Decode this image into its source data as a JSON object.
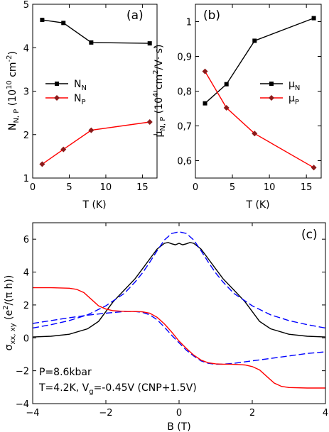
{
  "chart_data": [
    {
      "type": "line",
      "panel": "(a)",
      "xlabel": "T (K)",
      "ylabel": "N",
      "ylabel_sub": "N, P",
      "ylabel_unit": " (10",
      "ylabel_sup": "10",
      "ylabel_unit2": " cm",
      "ylabel_sup2": "-2",
      "ylabel_end": ")",
      "xlim": [
        0,
        17
      ],
      "ylim": [
        1,
        5
      ],
      "xticks": [
        0,
        5,
        10,
        15
      ],
      "yticks": [
        1,
        2,
        3,
        4,
        5
      ],
      "grid": false,
      "legend": "center-left",
      "series": [
        {
          "name": "N",
          "name_sub": "N",
          "color": "#000000",
          "marker": "square",
          "x": [
            1.3,
            4.2,
            8,
            16
          ],
          "y": [
            4.64,
            4.57,
            4.12,
            4.1
          ]
        },
        {
          "name": "N",
          "name_sub": "P",
          "color": "#ff0000",
          "marker": "diamond",
          "x": [
            1.3,
            4.2,
            8,
            16
          ],
          "y": [
            1.32,
            1.66,
            2.1,
            2.29
          ]
        }
      ]
    },
    {
      "type": "line",
      "panel": "(b)",
      "xlabel": "T (K)",
      "ylabel": "μ",
      "ylabel_sub": "N, P",
      "ylabel_unit": " (10",
      "ylabel_sup": "4",
      "ylabel_unit2": " cm",
      "ylabel_sup2": "2",
      "ylabel_end": "/V· s)",
      "xlim": [
        0,
        17
      ],
      "ylim": [
        0.55,
        1.05
      ],
      "xticks": [
        0,
        5,
        10,
        15
      ],
      "yticks": [
        0.6,
        0.7,
        0.8,
        0.9,
        1.0
      ],
      "ytick_labels": [
        "0,6",
        "0,7",
        "0,8",
        "0,9",
        "1"
      ],
      "grid": false,
      "legend": "upper-right",
      "series": [
        {
          "name": "μ",
          "name_sub": "N",
          "color": "#000000",
          "marker": "square",
          "x": [
            1.3,
            4.2,
            8,
            16
          ],
          "y": [
            0.765,
            0.82,
            0.945,
            1.01
          ]
        },
        {
          "name": "μ",
          "name_sub": "P",
          "color": "#ff0000",
          "marker": "diamond",
          "x": [
            1.3,
            4.2,
            8,
            16
          ],
          "y": [
            0.857,
            0.752,
            0.678,
            0.58
          ]
        }
      ]
    },
    {
      "type": "line",
      "panel": "(c)",
      "xlabel": "B (T)",
      "ylabel": "σ",
      "ylabel_sub": "xx, xy",
      "ylabel_unit": " (e",
      "ylabel_sup": "2",
      "ylabel_end": "/(π h))",
      "xlim": [
        -4,
        4
      ],
      "ylim": [
        -4,
        7
      ],
      "xticks": [
        -4,
        -2,
        0,
        2,
        4
      ],
      "yticks": [
        -4,
        -2,
        0,
        2,
        4,
        6
      ],
      "grid": false,
      "annotations": [
        "P=8.6kbar",
        "T=4.2K, V",
        "g",
        "=-0.45V (CNP+1.5V)"
      ],
      "series": [
        {
          "color": "#000000",
          "style": "solid",
          "x": [
            -4,
            -3.5,
            -3,
            -2.5,
            -2.2,
            -2,
            -1.8,
            -1.5,
            -1.2,
            -1,
            -0.8,
            -0.6,
            -0.4,
            -0.3,
            -0.2,
            -0.1,
            0,
            0.1,
            0.2,
            0.3,
            0.4,
            0.6,
            0.8,
            1,
            1.2,
            1.5,
            1.8,
            2,
            2.2,
            2.5,
            3,
            3.5,
            4
          ],
          "y": [
            0.05,
            0.1,
            0.22,
            0.55,
            1.0,
            1.6,
            2.2,
            2.9,
            3.6,
            4.2,
            4.8,
            5.4,
            5.75,
            5.8,
            5.72,
            5.66,
            5.75,
            5.66,
            5.72,
            5.8,
            5.75,
            5.4,
            4.8,
            4.2,
            3.6,
            2.9,
            2.2,
            1.6,
            1.0,
            0.55,
            0.22,
            0.1,
            0.05
          ]
        },
        {
          "color": "#0000ff",
          "style": "dashed",
          "x": [
            -4,
            -3.5,
            -3,
            -2.5,
            -2,
            -1.5,
            -1.2,
            -1,
            -0.8,
            -0.6,
            -0.4,
            -0.2,
            0,
            0.2,
            0.4,
            0.6,
            0.8,
            1,
            1.2,
            1.5,
            2,
            2.5,
            3,
            3.5,
            4
          ],
          "y": [
            0.6,
            0.8,
            1.05,
            1.4,
            1.95,
            2.7,
            3.4,
            3.95,
            4.6,
            5.3,
            5.95,
            6.35,
            6.45,
            6.35,
            5.95,
            5.3,
            4.6,
            3.95,
            3.4,
            2.7,
            1.95,
            1.4,
            1.05,
            0.8,
            0.6
          ]
        },
        {
          "color": "#0000ff",
          "style": "dashed",
          "x": [
            -4,
            -3.5,
            -3,
            -2.5,
            -2,
            -1.5,
            -1.2,
            -1,
            -0.8,
            -0.6,
            -0.4,
            -0.2,
            0,
            0.2,
            0.4,
            0.6,
            0.8,
            1,
            1.2,
            1.5,
            2,
            2.5,
            3,
            3.5,
            4
          ],
          "y": [
            0.88,
            1.05,
            1.22,
            1.38,
            1.5,
            1.6,
            1.6,
            1.55,
            1.4,
            1.1,
            0.65,
            0.15,
            -0.3,
            -0.75,
            -1.1,
            -1.4,
            -1.55,
            -1.6,
            -1.6,
            -1.55,
            -1.4,
            -1.25,
            -1.1,
            -0.95,
            -0.85
          ]
        },
        {
          "color": "#ff0000",
          "style": "solid",
          "x": [
            -4,
            -3.5,
            -3,
            -2.8,
            -2.6,
            -2.4,
            -2.2,
            -2,
            -1.8,
            -1.6,
            -1.4,
            -1.2,
            -1,
            -0.8,
            -0.6,
            -0.4,
            -0.2,
            0,
            0.2,
            0.4,
            0.6,
            0.8,
            1,
            1.2,
            1.4,
            1.6,
            1.8,
            2,
            2.2,
            2.4,
            2.6,
            2.8,
            3,
            3.5,
            4
          ],
          "y": [
            3.05,
            3.05,
            3.02,
            2.95,
            2.75,
            2.35,
            1.95,
            1.75,
            1.65,
            1.62,
            1.6,
            1.6,
            1.58,
            1.5,
            1.25,
            0.85,
            0.35,
            -0.2,
            -0.65,
            -1.05,
            -1.35,
            -1.52,
            -1.58,
            -1.6,
            -1.6,
            -1.62,
            -1.65,
            -1.75,
            -1.95,
            -2.35,
            -2.75,
            -2.95,
            -3.02,
            -3.05,
            -3.05
          ]
        }
      ]
    }
  ]
}
